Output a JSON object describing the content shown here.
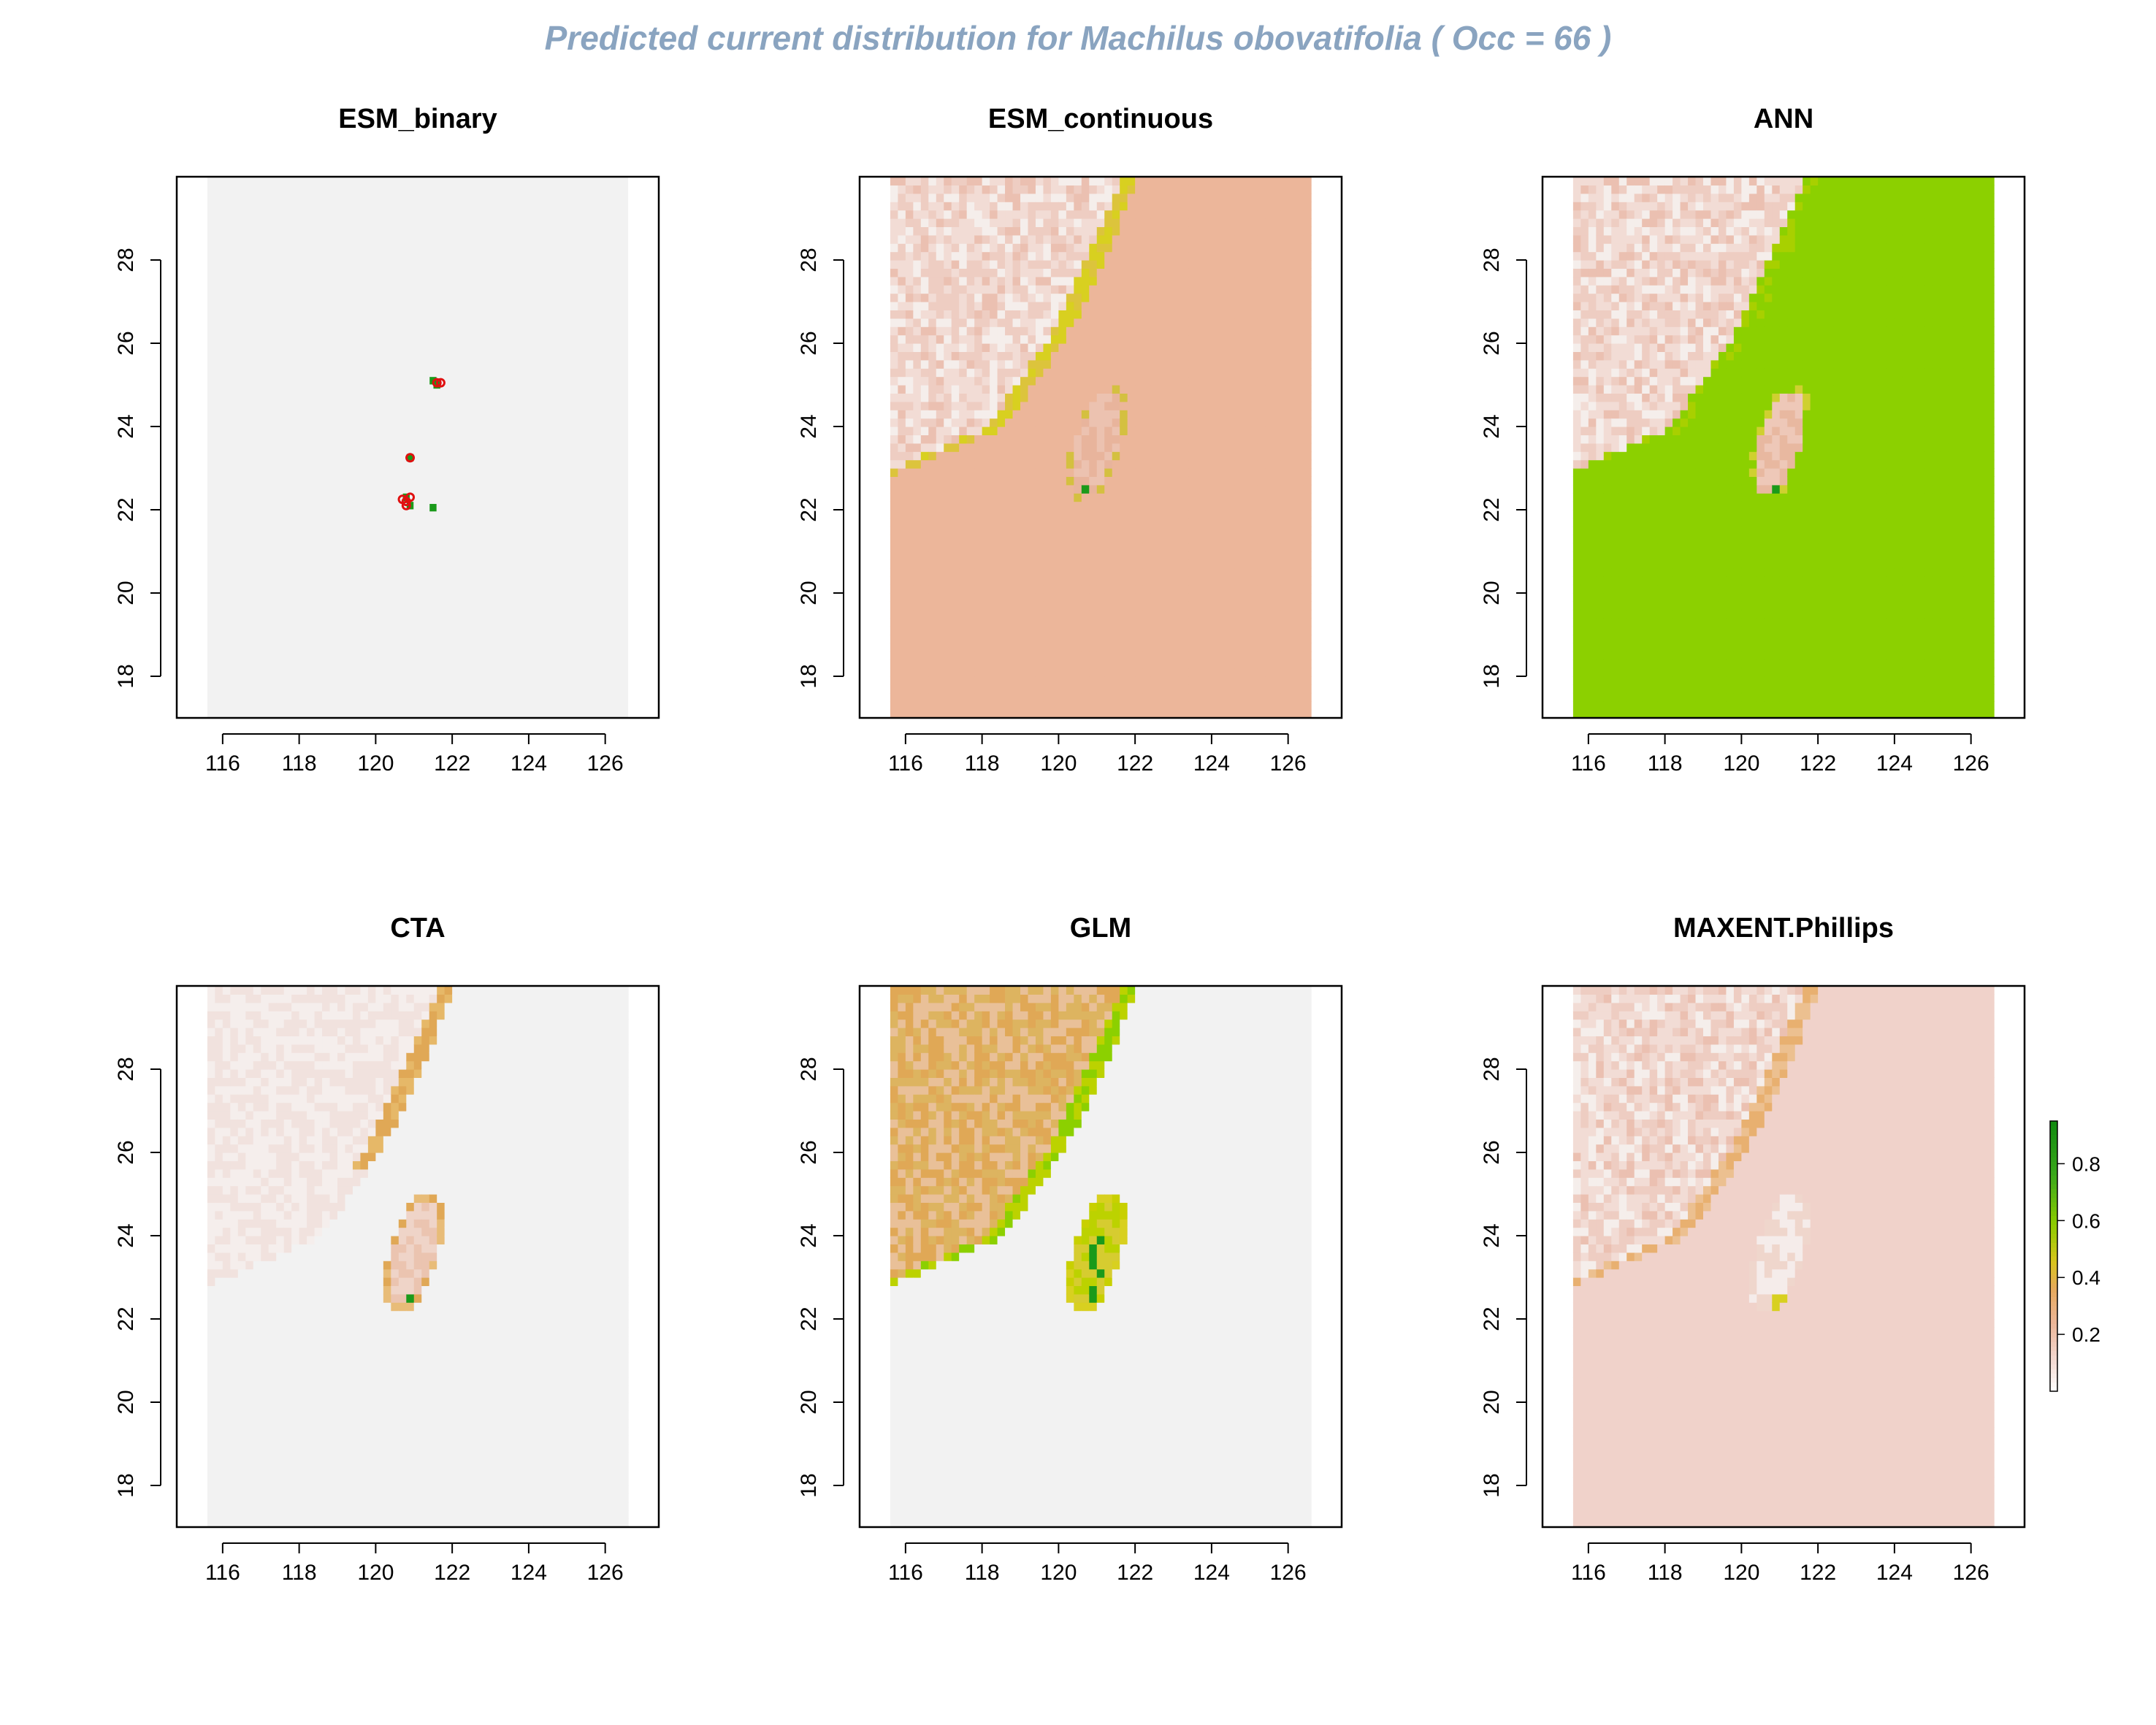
{
  "title": "Predicted current distribution for Machilus obovatifolia  ( Occ =  66  )",
  "colors": {
    "title": "#8aa4c0",
    "background_gray": "#f2f2f2",
    "land_low": "#f1dfda",
    "mid_salmon": "#ecb69a",
    "orange": "#e0a856",
    "yellow": "#d8d020",
    "yellowgreen": "#8cd000",
    "green": "#1a9a1a",
    "occurrence_red": "#e01010"
  },
  "chart_data": [
    {
      "type": "heatmap",
      "title": "ESM_binary",
      "xticks": [
        116,
        118,
        120,
        122,
        124,
        126
      ],
      "yticks": [
        18,
        20,
        22,
        24,
        26,
        28
      ],
      "xlim": [
        114.8,
        127.4
      ],
      "ylim": [
        17.0,
        30.0
      ],
      "raster_extent": {
        "x": [
          115.6,
          126.6
        ],
        "y": [
          17.0,
          30.0
        ]
      },
      "background": "uniform gray",
      "presence_cells": [
        [
          121.5,
          25.1
        ],
        [
          121.6,
          25.0
        ],
        [
          120.9,
          23.25
        ],
        [
          120.8,
          22.3
        ],
        [
          120.9,
          22.1
        ],
        [
          121.5,
          22.05
        ]
      ],
      "occurrences": [
        [
          121.6,
          25.05
        ],
        [
          121.7,
          25.05
        ],
        [
          120.9,
          23.25
        ],
        [
          120.7,
          22.25
        ],
        [
          120.8,
          22.2
        ],
        [
          120.9,
          22.3
        ],
        [
          120.8,
          22.1
        ]
      ]
    },
    {
      "type": "heatmap",
      "title": "ESM_continuous",
      "xticks": [
        116,
        118,
        120,
        122,
        124,
        126
      ],
      "yticks": [
        18,
        20,
        22,
        24,
        26,
        28
      ],
      "xlim": [
        114.8,
        127.4
      ],
      "ylim": [
        17.0,
        30.0
      ],
      "raster_extent": {
        "x": [
          115.6,
          126.6
        ],
        "y": [
          17.0,
          30.0
        ]
      },
      "ocean_value": 0.3,
      "mainland_value": "0.05-0.2",
      "coast_value": "0.45",
      "island_value": "0.1-0.3",
      "island_hotspot": "0.8"
    },
    {
      "type": "heatmap",
      "title": "ANN",
      "xticks": [
        116,
        118,
        120,
        122,
        124,
        126
      ],
      "yticks": [
        18,
        20,
        22,
        24,
        26,
        28
      ],
      "xlim": [
        114.8,
        127.4
      ],
      "ylim": [
        17.0,
        30.0
      ],
      "raster_extent": {
        "x": [
          115.6,
          126.6
        ],
        "y": [
          17.0,
          30.0
        ]
      },
      "ocean_value": 0.5,
      "mainland_value": "0.05-0.15",
      "coast_value": "0.5",
      "island_value": "0.1-0.3",
      "island_hotspot": "0.8"
    },
    {
      "type": "heatmap",
      "title": "CTA",
      "xticks": [
        116,
        118,
        120,
        122,
        124,
        126
      ],
      "yticks": [
        18,
        20,
        22,
        24,
        26,
        28
      ],
      "xlim": [
        114.8,
        127.4
      ],
      "ylim": [
        17.0,
        30.0
      ],
      "raster_extent": {
        "x": [
          115.6,
          126.6
        ],
        "y": [
          17.0,
          30.0
        ]
      },
      "ocean_value": 0.0,
      "mainland_value": "0.02-0.08",
      "coast_value": "0.35",
      "island_value": "0.1-0.35",
      "island_hotspot": "0.8"
    },
    {
      "type": "heatmap",
      "title": "GLM",
      "xticks": [
        116,
        118,
        120,
        122,
        124,
        126
      ],
      "yticks": [
        18,
        20,
        22,
        24,
        26,
        28
      ],
      "xlim": [
        114.8,
        127.4
      ],
      "ylim": [
        17.0,
        30.0
      ],
      "raster_extent": {
        "x": [
          115.6,
          126.6
        ],
        "y": [
          17.0,
          30.0
        ]
      },
      "ocean_value": 0.0,
      "mainland_value": "0.2-0.4",
      "coast_value": "0.5",
      "island_value": "0.35-0.6",
      "island_hotspot": "0.8"
    },
    {
      "type": "heatmap",
      "title": "MAXENT.Phillips",
      "xticks": [
        116,
        118,
        120,
        122,
        124,
        126
      ],
      "yticks": [
        18,
        20,
        22,
        24,
        26,
        28
      ],
      "xlim": [
        114.8,
        127.4
      ],
      "ylim": [
        17.0,
        30.0
      ],
      "raster_extent": {
        "x": [
          115.6,
          126.6
        ],
        "y": [
          17.0,
          30.0
        ]
      },
      "ocean_value": 0.12,
      "mainland_value": "0.05-0.3",
      "coast_value": "0.35",
      "island_value": "0.05-0.2",
      "island_hotspot": "0.8",
      "legend": {
        "ticks": [
          "0.2",
          "0.4",
          "0.6",
          "0.8"
        ],
        "range": [
          0.0,
          0.95
        ]
      }
    }
  ]
}
